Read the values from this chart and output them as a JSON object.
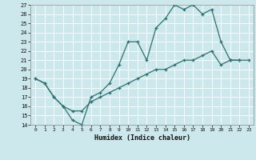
{
  "xlabel": "Humidex (Indice chaleur)",
  "bg_color": "#cce8ec",
  "grid_color": "#ffffff",
  "line_color": "#2e7070",
  "xlim": [
    -0.5,
    23.5
  ],
  "ylim": [
    14,
    27
  ],
  "xticks": [
    0,
    1,
    2,
    3,
    4,
    5,
    6,
    7,
    8,
    9,
    10,
    11,
    12,
    13,
    14,
    15,
    16,
    17,
    18,
    19,
    20,
    21,
    22,
    23
  ],
  "yticks": [
    14,
    15,
    16,
    17,
    18,
    19,
    20,
    21,
    22,
    23,
    24,
    25,
    26,
    27
  ],
  "line1_x": [
    0,
    1,
    2,
    3,
    4,
    5,
    6,
    7,
    8,
    9,
    10,
    11,
    12,
    13,
    14,
    15,
    16,
    17,
    18,
    19,
    20,
    21,
    22,
    23
  ],
  "line1_y": [
    19,
    18.5,
    17,
    16,
    14.5,
    14,
    17,
    17.5,
    18.5,
    20.5,
    23,
    23,
    21,
    24.5,
    25.5,
    27,
    26.5,
    27,
    26,
    26.5,
    23,
    21.0,
    21.0,
    null
  ],
  "line2_x": [
    0,
    1,
    2,
    3,
    4,
    5,
    6,
    7,
    8,
    9,
    10,
    11,
    12,
    13,
    14,
    15,
    16,
    17,
    18,
    19,
    20,
    21,
    22,
    23
  ],
  "line2_y": [
    19,
    18.5,
    17,
    16,
    15.5,
    15.5,
    16.5,
    17,
    17.5,
    18,
    18.5,
    19,
    19.5,
    20,
    20,
    20.5,
    21,
    21,
    21.5,
    22,
    20.5,
    21,
    21,
    21
  ]
}
